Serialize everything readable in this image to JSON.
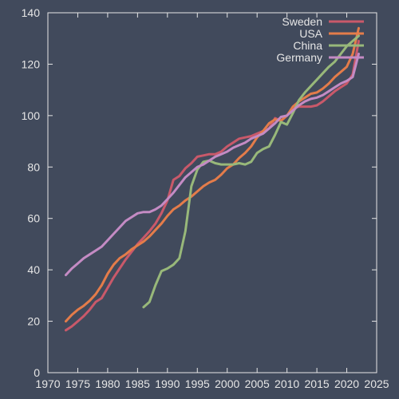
{
  "colors": {
    "background": "#414a5c",
    "axis": "#e6e6e6"
  },
  "chart_data": {
    "type": "line",
    "title": "",
    "xlabel": "",
    "ylabel": "",
    "xlim": [
      1970,
      2025
    ],
    "ylim": [
      0,
      140
    ],
    "xticks": [
      1970,
      1975,
      1980,
      1985,
      1990,
      1995,
      2000,
      2005,
      2010,
      2015,
      2020,
      2025
    ],
    "yticks": [
      0,
      20,
      40,
      60,
      80,
      100,
      120,
      140
    ],
    "grid": false,
    "legend_position": "top-right",
    "series": [
      {
        "name": "Sweden",
        "color": "#c9596a",
        "x": [
          1973,
          1974,
          1975,
          1976,
          1977,
          1978,
          1979,
          1980,
          1981,
          1982,
          1983,
          1984,
          1985,
          1986,
          1987,
          1988,
          1989,
          1990,
          1991,
          1992,
          1993,
          1994,
          1995,
          1996,
          1997,
          1998,
          1999,
          2000,
          2001,
          2002,
          2003,
          2004,
          2005,
          2006,
          2007,
          2008,
          2009,
          2010,
          2011,
          2012,
          2013,
          2014,
          2015,
          2016,
          2017,
          2018,
          2019,
          2020,
          2021,
          2022
        ],
        "y": [
          16.5,
          18,
          20,
          22,
          24.5,
          27.5,
          29,
          33,
          37,
          40.5,
          44,
          47,
          50,
          52.5,
          55,
          58,
          62,
          67,
          75,
          76.5,
          79.5,
          81.5,
          84,
          84.5,
          85,
          85,
          86,
          88,
          89.5,
          91,
          91.5,
          92,
          93,
          94,
          95,
          99,
          98,
          100,
          103,
          103.5,
          103.5,
          103.5,
          104,
          105.5,
          107.5,
          109.5,
          111,
          112.5,
          116,
          129
        ]
      },
      {
        "name": "USA",
        "color": "#e47c4a",
        "x": [
          1973,
          1974,
          1975,
          1976,
          1977,
          1978,
          1979,
          1980,
          1981,
          1982,
          1983,
          1984,
          1985,
          1986,
          1987,
          1988,
          1989,
          1990,
          1991,
          1992,
          1993,
          1994,
          1995,
          1996,
          1997,
          1998,
          1999,
          2000,
          2001,
          2002,
          2003,
          2004,
          2005,
          2006,
          2007,
          2008,
          2009,
          2010,
          2011,
          2012,
          2013,
          2014,
          2015,
          2016,
          2017,
          2018,
          2019,
          2020,
          2021,
          2022
        ],
        "y": [
          20,
          22.5,
          24.5,
          26,
          28,
          30.5,
          34,
          38.5,
          42,
          44.5,
          46,
          48,
          49.5,
          51,
          53,
          55.5,
          58,
          61,
          63.5,
          65,
          67,
          68.5,
          70.5,
          72.5,
          74,
          75,
          77,
          79.5,
          81,
          83.5,
          85.5,
          88,
          91.5,
          94,
          97,
          98.5,
          98,
          100,
          103.5,
          105.5,
          107,
          108.5,
          109,
          110.5,
          112.5,
          115,
          117,
          119,
          124,
          134
        ]
      },
      {
        "name": "China",
        "color": "#98b87a",
        "x": [
          1986,
          1987,
          1988,
          1989,
          1990,
          1991,
          1992,
          1993,
          1994,
          1995,
          1996,
          1997,
          1998,
          1999,
          2000,
          2001,
          2002,
          2003,
          2004,
          2005,
          2006,
          2007,
          2008,
          2009,
          2010,
          2011,
          2012,
          2013,
          2014,
          2015,
          2016,
          2017,
          2018,
          2019,
          2020,
          2021,
          2022
        ],
        "y": [
          25.5,
          27.5,
          34,
          39.5,
          40.5,
          42,
          44.5,
          55,
          72.5,
          79,
          82,
          82.5,
          81.5,
          81,
          81,
          81,
          81.5,
          81,
          82,
          85.5,
          87,
          88,
          92.5,
          97.5,
          96.5,
          101,
          106,
          109,
          111.5,
          114,
          116.5,
          119,
          121,
          124,
          127,
          129,
          131
        ]
      },
      {
        "name": "Germany",
        "color": "#c48bc4",
        "x": [
          1973,
          1974,
          1975,
          1976,
          1977,
          1978,
          1979,
          1980,
          1981,
          1982,
          1983,
          1984,
          1985,
          1986,
          1987,
          1988,
          1989,
          1990,
          1991,
          1992,
          1993,
          1994,
          1995,
          1996,
          1997,
          1998,
          1999,
          2000,
          2001,
          2002,
          2003,
          2004,
          2005,
          2006,
          2007,
          2008,
          2009,
          2010,
          2011,
          2012,
          2013,
          2014,
          2015,
          2016,
          2017,
          2018,
          2019,
          2020,
          2021,
          2022
        ],
        "y": [
          38,
          40.5,
          42.5,
          44.5,
          46,
          47.5,
          49,
          51.5,
          54,
          56.5,
          59,
          60.5,
          62,
          62.5,
          62.5,
          63.5,
          65,
          67.5,
          70,
          73,
          76,
          78,
          80,
          81,
          82.5,
          84,
          85,
          86,
          87.5,
          88.5,
          89.5,
          91,
          92,
          93,
          95,
          97,
          99.5,
          100,
          102,
          104,
          105.5,
          106.5,
          107,
          108,
          109.5,
          111,
          112.5,
          113.5,
          115,
          124
        ]
      }
    ]
  }
}
